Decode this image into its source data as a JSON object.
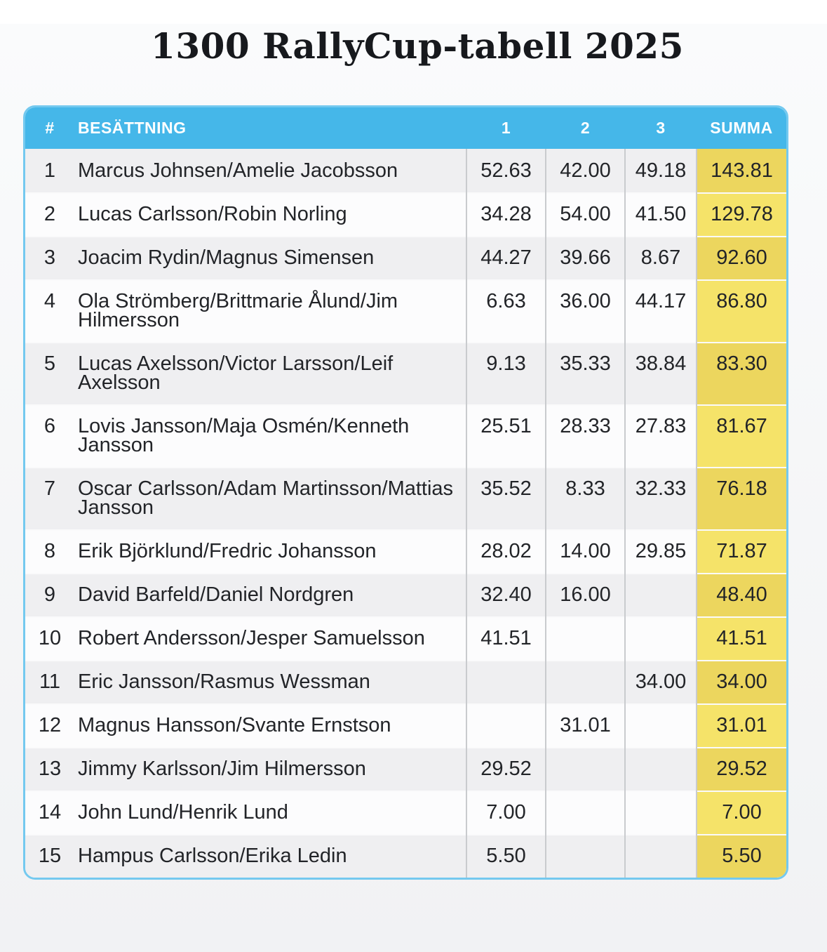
{
  "title": "1300 RallyCup-tabell 2025",
  "table": {
    "headers": {
      "rank": "#",
      "crew": "BESÄTTNING",
      "round1": "1",
      "round2": "2",
      "round3": "3",
      "summa": "SUMMA"
    },
    "rows": [
      {
        "rank": "1",
        "crew": "Marcus Johnsen/Amelie Jacobsson",
        "round1": "52.63",
        "round2": "42.00",
        "round3": "49.18",
        "summa": "143.81"
      },
      {
        "rank": "2",
        "crew": "Lucas Carlsson/Robin Norling",
        "round1": "34.28",
        "round2": "54.00",
        "round3": "41.50",
        "summa": "129.78"
      },
      {
        "rank": "3",
        "crew": "Joacim Rydin/Magnus Simensen",
        "round1": "44.27",
        "round2": "39.66",
        "round3": "8.67",
        "summa": "92.60"
      },
      {
        "rank": "4",
        "crew": "Ola Strömberg/Brittmarie Ålund/Jim Hilmersson",
        "round1": "6.63",
        "round2": "36.00",
        "round3": "44.17",
        "summa": "86.80"
      },
      {
        "rank": "5",
        "crew": "Lucas Axelsson/Victor Larsson/Leif Axelsson",
        "round1": "9.13",
        "round2": "35.33",
        "round3": "38.84",
        "summa": "83.30"
      },
      {
        "rank": "6",
        "crew": "Lovis Jansson/Maja Osmén/Kenneth Jansson",
        "round1": "25.51",
        "round2": "28.33",
        "round3": "27.83",
        "summa": "81.67"
      },
      {
        "rank": "7",
        "crew": "Oscar Carlsson/Adam Martinsson/Mattias Jansson",
        "round1": "35.52",
        "round2": "8.33",
        "round3": "32.33",
        "summa": "76.18"
      },
      {
        "rank": "8",
        "crew": "Erik Björklund/Fredric Johansson",
        "round1": "28.02",
        "round2": "14.00",
        "round3": "29.85",
        "summa": "71.87"
      },
      {
        "rank": "9",
        "crew": "David Barfeld/Daniel Nordgren",
        "round1": "32.40",
        "round2": "16.00",
        "round3": "",
        "summa": "48.40"
      },
      {
        "rank": "10",
        "crew": "Robert Andersson/Jesper Samuelsson",
        "round1": "41.51",
        "round2": "",
        "round3": "",
        "summa": "41.51"
      },
      {
        "rank": "11",
        "crew": "Eric Jansson/Rasmus Wessman",
        "round1": "",
        "round2": "",
        "round3": "34.00",
        "summa": "34.00"
      },
      {
        "rank": "12",
        "crew": "Magnus Hansson/Svante Ernstson",
        "round1": "",
        "round2": "31.01",
        "round3": "",
        "summa": "31.01"
      },
      {
        "rank": "13",
        "crew": "Jimmy Karlsson/Jim Hilmersson",
        "round1": "29.52",
        "round2": "",
        "round3": "",
        "summa": "29.52"
      },
      {
        "rank": "14",
        "crew": "John Lund/Henrik Lund",
        "round1": "7.00",
        "round2": "",
        "round3": "",
        "summa": "7.00"
      },
      {
        "rank": "15",
        "crew": "Hampus Carlsson/Erika Ledin",
        "round1": "5.50",
        "round2": "",
        "round3": "",
        "summa": "5.50"
      }
    ]
  },
  "colors": {
    "header_bg": "#45b7e9",
    "table_border": "#74c9ef",
    "row_bg": "#fcfcfd",
    "row_alt_bg": "#efeff1",
    "summa_on_white": "#f5e369",
    "summa_on_alt": "#ecd65e",
    "header_text": "#ffffff",
    "body_text": "#222428"
  }
}
